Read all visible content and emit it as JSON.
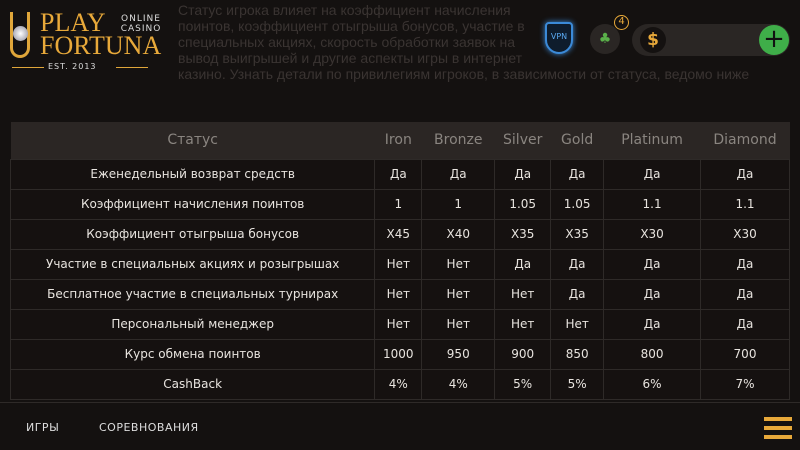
{
  "background_text": [
    "Статус игрока влияет на коэффициент начисления поинтов, коэффициент отыгрыша бонусов, участие в",
    "специальных акциях, скорость обработки заявок на вывод выигрышей и другие аспекты игры в интернет",
    "казино. Узнать детали по привилегиям игроков, в зависимости от статуса, ведомо ниже"
  ],
  "logo": {
    "play": "PLAY",
    "online_casino": "ONLINE CASINO",
    "fortuna": "FORTUNA",
    "est": "EST. 2013"
  },
  "header": {
    "vpn_label": "VPN",
    "gift_count": "4",
    "currency_symbol": "$",
    "add_icon": "plus-icon"
  },
  "table": {
    "headers": [
      "Статус",
      "Iron",
      "Bronze",
      "Silver",
      "Gold",
      "Platinum",
      "Diamond"
    ],
    "rows": [
      [
        "Еженедельный возврат средств",
        "Да",
        "Да",
        "Да",
        "Да",
        "Да",
        "Да"
      ],
      [
        "Коэффициент начисления поинтов",
        "1",
        "1",
        "1.05",
        "1.05",
        "1.1",
        "1.1"
      ],
      [
        "Коэффициент отыгрыша бонусов",
        "X45",
        "X40",
        "X35",
        "X35",
        "X30",
        "X30"
      ],
      [
        "Участие в специальных акциях и розыгрышах",
        "Нет",
        "Нет",
        "Да",
        "Да",
        "Да",
        "Да"
      ],
      [
        "Бесплатное участие в специальных турнирах",
        "Нет",
        "Нет",
        "Нет",
        "Да",
        "Да",
        "Да"
      ],
      [
        "Персональный менеджер",
        "Нет",
        "Нет",
        "Нет",
        "Нет",
        "Да",
        "Да"
      ],
      [
        "Курс обмена поинтов",
        "1000",
        "950",
        "900",
        "850",
        "800",
        "700"
      ],
      [
        "CashBack",
        "4%",
        "4%",
        "5%",
        "5%",
        "6%",
        "7%"
      ]
    ]
  },
  "bottom_nav": {
    "games": "ИГРЫ",
    "competitions": "СОРЕВНОВАНИЯ"
  },
  "colors": {
    "accent": "#e8a93a",
    "green": "#3fae49",
    "background": "#141110"
  }
}
